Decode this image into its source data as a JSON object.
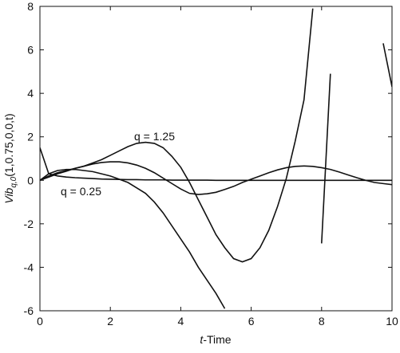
{
  "chart_data": {
    "type": "line",
    "y_label": {
      "main": "Vib",
      "sub": "q,0",
      "args": "(1,0.75,0,0,t)"
    },
    "x_label": {
      "var": "t",
      "rest": "-Time"
    },
    "annotations": [
      "q = 1.25",
      "q = 0.25"
    ],
    "x": [
      0,
      0.25,
      0.5,
      0.75,
      1,
      1.25,
      1.5,
      1.75,
      2,
      2.25,
      2.5,
      2.75,
      3,
      3.25,
      3.5,
      3.75,
      4,
      4.25,
      4.5,
      4.75,
      5,
      5.25,
      5.5,
      5.75,
      6,
      6.25,
      6.5,
      6.75,
      7,
      7.25,
      7.5,
      7.75,
      8,
      8.25,
      8.5,
      8.75,
      9,
      9.25,
      9.5,
      9.75,
      10
    ],
    "series": [
      {
        "color": "#111111",
        "values": [
          1.5,
          0.3,
          0.2,
          0.15,
          0.12,
          0.1,
          0.08,
          0.06,
          0.05,
          0.04,
          0.03,
          0.03,
          0.02,
          0.02,
          0.02,
          0.01,
          0.01,
          0.01,
          0.01,
          0.01,
          0,
          0,
          0,
          0,
          0,
          0,
          0,
          0,
          0,
          0,
          0,
          0,
          0,
          0,
          0,
          0,
          0,
          0,
          0,
          0,
          0
        ]
      },
      {
        "color": "#111111",
        "values": [
          0,
          0.15,
          0.3,
          0.42,
          0.55,
          0.65,
          0.75,
          0.82,
          0.85,
          0.85,
          0.8,
          0.7,
          0.55,
          0.35,
          0.1,
          -0.15,
          -0.4,
          -0.6,
          -0.65,
          -0.62,
          -0.55,
          -0.42,
          -0.28,
          -0.1,
          0.05,
          0.2,
          0.35,
          0.48,
          0.58,
          0.64,
          0.66,
          0.64,
          0.58,
          0.5,
          0.38,
          0.25,
          0.12,
          0,
          -0.1,
          -0.15,
          -0.2
        ]
      },
      {
        "color": "#111111",
        "values": [
          0,
          0.2,
          0.35,
          0.45,
          0.55,
          0.65,
          0.8,
          0.95,
          1.15,
          1.35,
          1.55,
          1.7,
          1.75,
          1.7,
          1.5,
          1.1,
          0.6,
          -0.1,
          -0.9,
          -1.7,
          -2.5,
          -3.1,
          -3.6,
          -3.75,
          -3.6,
          -3.1,
          -2.3,
          -1.2,
          0.1,
          1.8,
          3.7,
          7.9,
          null,
          null,
          null,
          null,
          null,
          null,
          null,
          6.3,
          4.3
        ]
      },
      {
        "color": "#111111",
        "values": [
          0,
          0.3,
          0.45,
          0.5,
          0.5,
          0.45,
          0.4,
          0.3,
          0.2,
          0.05,
          -0.1,
          -0.35,
          -0.6,
          -1.0,
          -1.5,
          -2.1,
          -2.7,
          -3.3,
          -4.0,
          -4.6,
          -5.2,
          -5.9,
          null,
          null,
          null,
          null,
          null,
          null,
          null,
          null,
          null,
          null,
          -2.9,
          4.9,
          null,
          null,
          null,
          null,
          null,
          null,
          null
        ]
      }
    ],
    "xlim": [
      0,
      10
    ],
    "ylim": [
      -6,
      8
    ],
    "xticks": [
      0,
      2,
      4,
      6,
      8,
      10
    ],
    "yticks": [
      -6,
      -4,
      -2,
      0,
      2,
      4,
      6,
      8
    ]
  }
}
